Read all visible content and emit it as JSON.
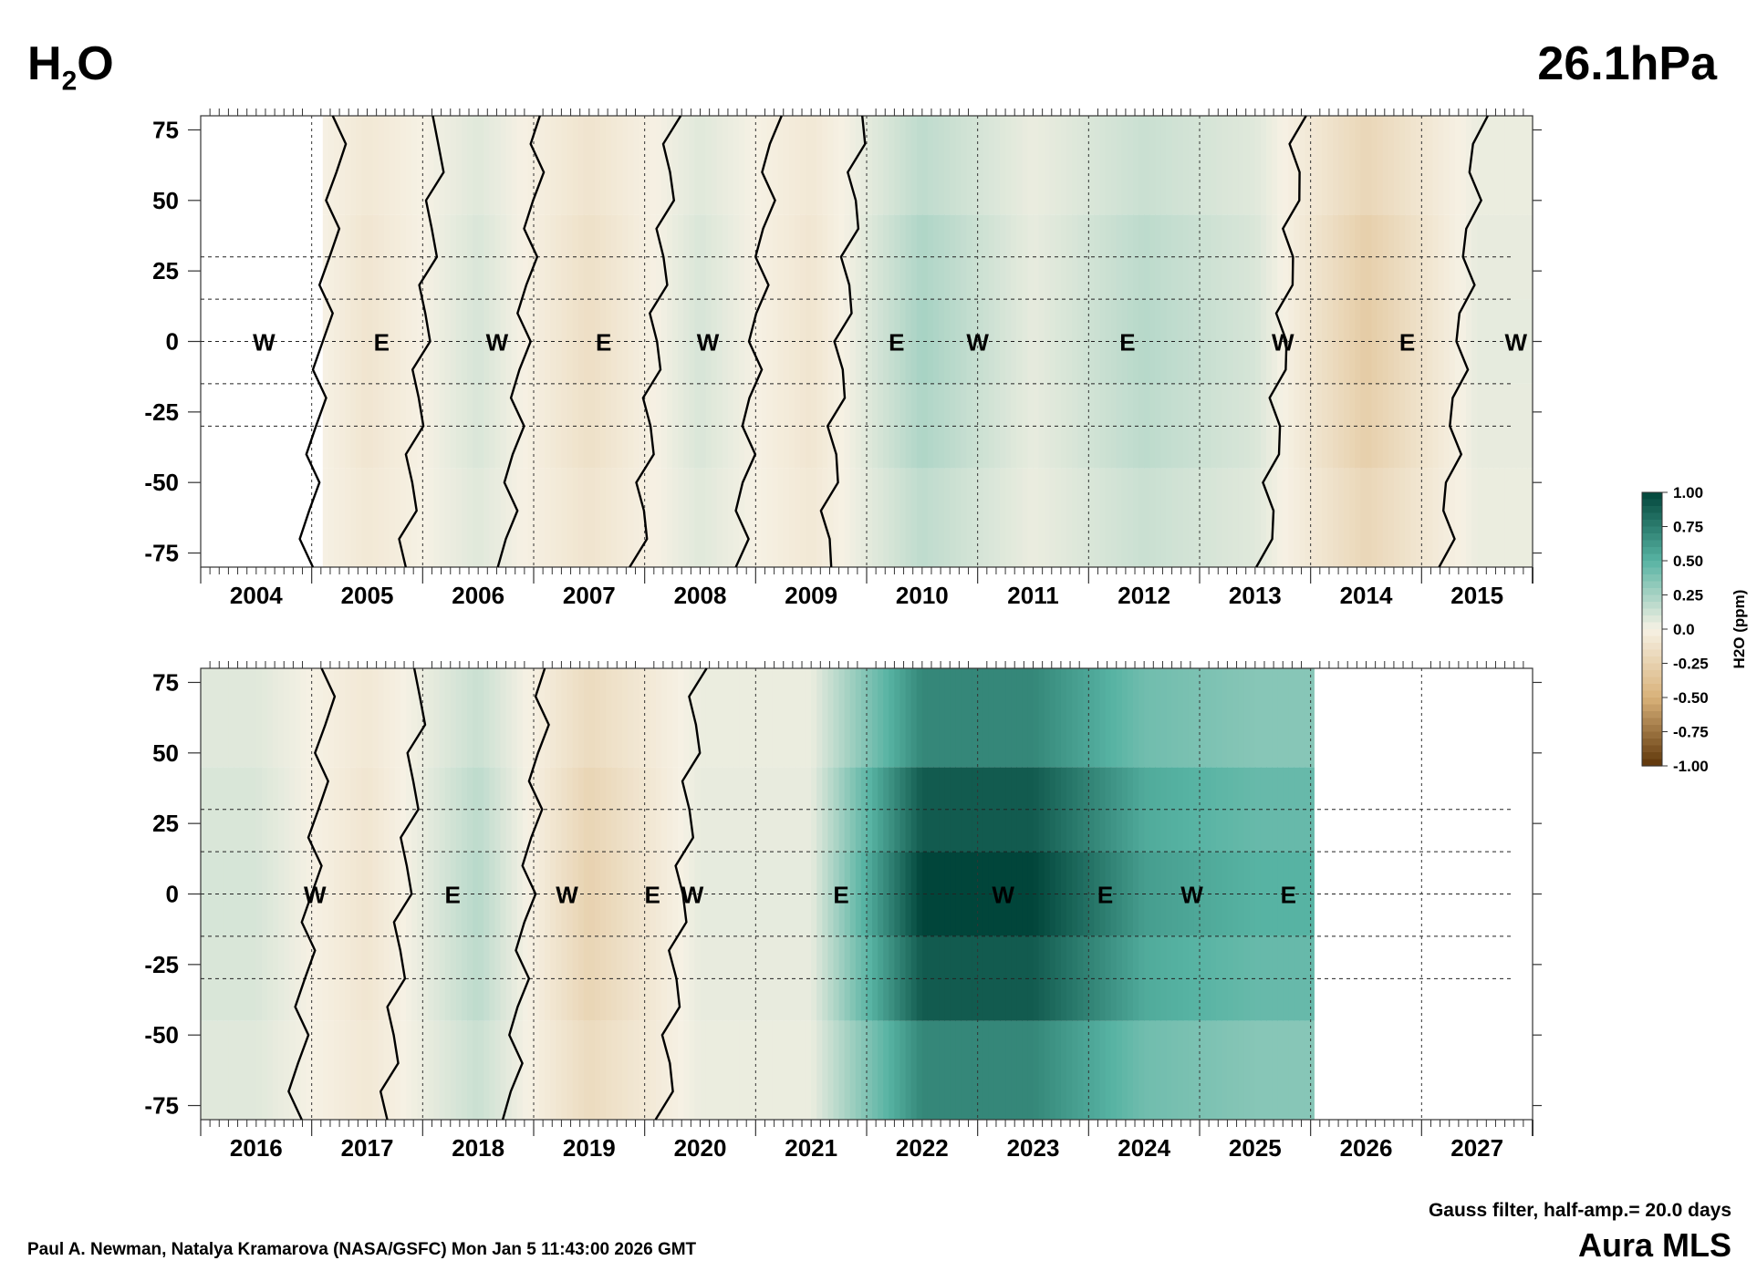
{
  "header": {
    "species_main": "H",
    "species_sub": "2",
    "species_tail": "O",
    "level": "26.1hPa"
  },
  "footer": {
    "credit": "Paul A. Newman, Natalya Kramarova (NASA/GSFC) Mon Jan  5 11:43:00 2026 GMT",
    "filter": "Gauss filter, half-amp.= 20.0 days",
    "instrument": "Aura MLS"
  },
  "colors": {
    "positive_max": "#01453a",
    "positive_mid": "#57b3a3",
    "zero": "#f6f1e4",
    "negative_mid": "#d9b27a",
    "negative_max": "#5e3508",
    "contour": "#000000"
  },
  "chart_data": [
    {
      "type": "heatmap",
      "panel": "top",
      "x_range": [
        2003.5,
        2015.5
      ],
      "data_start": 2004.6,
      "data_end": 2015.5,
      "ylim": [
        -80,
        80
      ],
      "y_ticks": [
        "75",
        "50",
        "25",
        "0",
        "-25",
        "-50",
        "-75"
      ],
      "year_labels": [
        "2004",
        "2005",
        "2006",
        "2007",
        "2008",
        "2009",
        "2010",
        "2011",
        "2012",
        "2013",
        "2014",
        "2015"
      ],
      "qbo_phases": [
        {
          "t": 2004.07,
          "label": "W"
        },
        {
          "t": 2005.13,
          "label": "E"
        },
        {
          "t": 2006.17,
          "label": "W"
        },
        {
          "t": 2007.13,
          "label": "E"
        },
        {
          "t": 2008.07,
          "label": "W"
        },
        {
          "t": 2009.77,
          "label": "E"
        },
        {
          "t": 2010.5,
          "label": "W"
        },
        {
          "t": 2011.85,
          "label": "E"
        },
        {
          "t": 2013.25,
          "label": "W"
        },
        {
          "t": 2014.37,
          "label": "E"
        },
        {
          "t": 2015.35,
          "label": "W"
        }
      ],
      "anomaly_profile_ppm": [
        {
          "t": 2004.0,
          "v": 0.15
        },
        {
          "t": 2005.0,
          "v": -0.1
        },
        {
          "t": 2006.0,
          "v": 0.1
        },
        {
          "t": 2007.0,
          "v": -0.15
        },
        {
          "t": 2008.0,
          "v": 0.1
        },
        {
          "t": 2009.0,
          "v": -0.1
        },
        {
          "t": 2010.0,
          "v": 0.25
        },
        {
          "t": 2011.0,
          "v": 0.05
        },
        {
          "t": 2012.0,
          "v": 0.2
        },
        {
          "t": 2013.0,
          "v": 0.1
        },
        {
          "t": 2014.0,
          "v": -0.3
        },
        {
          "t": 2015.0,
          "v": 0.05
        }
      ]
    },
    {
      "type": "heatmap",
      "panel": "bottom",
      "x_range": [
        2015.5,
        2027.5
      ],
      "data_start": 2015.5,
      "data_end": 2025.53,
      "ylim": [
        -80,
        80
      ],
      "y_ticks": [
        "75",
        "50",
        "25",
        "0",
        "-25",
        "-50",
        "-75"
      ],
      "year_labels": [
        "2016",
        "2017",
        "2018",
        "2019",
        "2020",
        "2021",
        "2022",
        "2023",
        "2024",
        "2025",
        "2026",
        "2027"
      ],
      "qbo_phases": [
        {
          "t": 2016.53,
          "label": "W"
        },
        {
          "t": 2017.77,
          "label": "E"
        },
        {
          "t": 2018.8,
          "label": "W"
        },
        {
          "t": 2019.57,
          "label": "E"
        },
        {
          "t": 2019.93,
          "label": "W"
        },
        {
          "t": 2021.27,
          "label": "E"
        },
        {
          "t": 2022.73,
          "label": "W"
        },
        {
          "t": 2023.65,
          "label": "E"
        },
        {
          "t": 2024.43,
          "label": "W"
        },
        {
          "t": 2025.3,
          "label": "E"
        }
      ],
      "anomaly_profile_ppm": [
        {
          "t": 2016.0,
          "v": 0.1
        },
        {
          "t": 2017.0,
          "v": -0.1
        },
        {
          "t": 2018.0,
          "v": 0.2
        },
        {
          "t": 2019.0,
          "v": -0.25
        },
        {
          "t": 2020.0,
          "v": 0.05
        },
        {
          "t": 2021.0,
          "v": 0.05
        },
        {
          "t": 2022.0,
          "v": 1.0
        },
        {
          "t": 2023.0,
          "v": 1.0
        },
        {
          "t": 2024.0,
          "v": 0.6
        },
        {
          "t": 2025.0,
          "v": 0.5
        }
      ]
    }
  ],
  "colorbar": {
    "axis_label": "H2O (ppm)",
    "ticks": [
      "1.00",
      "0.75",
      "0.50",
      "0.25",
      "0.0",
      "-0.25",
      "-0.50",
      "-0.75",
      "-1.00"
    ],
    "min": -1.0,
    "max": 1.0
  }
}
